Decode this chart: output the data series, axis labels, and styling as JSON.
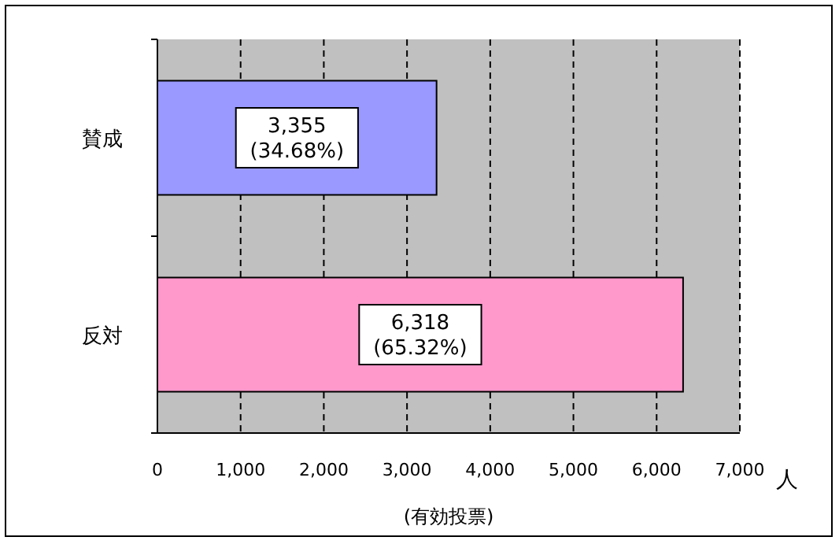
{
  "chart_data": {
    "type": "bar",
    "orientation": "horizontal",
    "categories": [
      "賛成",
      "反対"
    ],
    "values": [
      3355,
      6318
    ],
    "colors": [
      "#9999ff",
      "#ff99cc"
    ],
    "value_labels": [
      "3,355 (34.68%)",
      "6,318 (65.32%)"
    ],
    "xlim": [
      0,
      7000
    ],
    "xticks": [
      0,
      {
        "value": 1000,
        "label": "1,000"
      },
      {
        "value": 2000,
        "label": "2,000"
      },
      {
        "value": 3000,
        "label": "3,000"
      },
      {
        "value": 4000,
        "label": "4,000"
      },
      {
        "value": 5000,
        "label": "5,000"
      },
      {
        "value": 6000,
        "label": "6,000"
      },
      {
        "value": 7000,
        "label": "7,000"
      }
    ],
    "xlabel": "(有効投票)",
    "annotations": [
      "人"
    ],
    "grid": "x"
  }
}
